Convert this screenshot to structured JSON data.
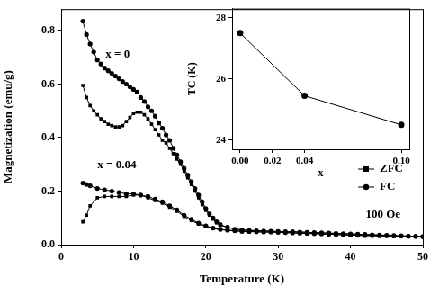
{
  "chart_data": [
    {
      "type": "line",
      "x_label": "Temperature (K)",
      "y_label": "Magnetization (emu/g)",
      "xlim": [
        0,
        50
      ],
      "xticks": [
        0,
        10,
        20,
        30,
        40,
        50
      ],
      "ylim": [
        0,
        0.88
      ],
      "yticks": [
        {
          "value": 0,
          "label": "0.0"
        },
        0.2,
        0.4,
        0.6,
        0.8
      ],
      "grid": false,
      "legend": "lower right",
      "annotations": [
        {
          "text": "x = 0",
          "x": 7.8,
          "y": 0.71
        },
        {
          "text": "x = 0.04",
          "x": 7.7,
          "y": 0.297
        },
        {
          "text": "100 Oe",
          "x": 44.5,
          "y": 0.113
        }
      ],
      "series": [
        {
          "name": "ZFC",
          "color": "#000000",
          "marker": "square",
          "line_style": "solid",
          "x": [
            3,
            3.5,
            4,
            4.5,
            5,
            5.5,
            6,
            6.5,
            7,
            7.5,
            8,
            8.5,
            9,
            9.5,
            10,
            10.5,
            11,
            11.5,
            12,
            12.5,
            13,
            13.5,
            14,
            14.5,
            15,
            15.5,
            16,
            16.5,
            17,
            17.5,
            18,
            18.5,
            19,
            19.5,
            20,
            20.5,
            21,
            21.5,
            22,
            23,
            24,
            25,
            26,
            27,
            28,
            29,
            30,
            31,
            32,
            33,
            34,
            35,
            36,
            37,
            38,
            39,
            40,
            41,
            42,
            43,
            44,
            45,
            46,
            47,
            48,
            49,
            50
          ],
          "values": [
            0.595,
            0.55,
            0.52,
            0.5,
            0.485,
            0.47,
            0.46,
            0.45,
            0.445,
            0.44,
            0.44,
            0.445,
            0.46,
            0.475,
            0.49,
            0.495,
            0.495,
            0.485,
            0.47,
            0.45,
            0.43,
            0.41,
            0.39,
            0.38,
            0.36,
            0.34,
            0.32,
            0.3,
            0.275,
            0.25,
            0.225,
            0.2,
            0.175,
            0.15,
            0.128,
            0.11,
            0.095,
            0.082,
            0.072,
            0.065,
            0.058,
            0.055,
            0.053,
            0.052,
            0.051,
            0.05,
            0.049,
            0.048,
            0.048,
            0.047,
            0.046,
            0.045,
            0.044,
            0.043,
            0.042,
            0.041,
            0.04,
            0.039,
            0.038,
            0.037,
            0.036,
            0.035,
            0.034,
            0.033,
            0.032,
            0.031,
            0.03
          ]
        },
        {
          "name": "FC",
          "color": "#000000",
          "marker": "circle",
          "line_style": "solid",
          "x": [
            3,
            3.5,
            4,
            4.5,
            5,
            5.5,
            6,
            6.5,
            7,
            7.5,
            8,
            8.5,
            9,
            9.5,
            10,
            10.5,
            11,
            11.5,
            12,
            12.5,
            13,
            13.5,
            14,
            14.5,
            15,
            15.5,
            16,
            16.5,
            17,
            17.5,
            18,
            18.5,
            19,
            19.5,
            20,
            20.5,
            21,
            21.5,
            22,
            23,
            24,
            25,
            26,
            27,
            28,
            29,
            30,
            31,
            32,
            33,
            34,
            35,
            36,
            37,
            38,
            39,
            40,
            41,
            42,
            43,
            44,
            45,
            46,
            47,
            48,
            49,
            50
          ],
          "values": [
            0.835,
            0.785,
            0.75,
            0.72,
            0.69,
            0.675,
            0.66,
            0.65,
            0.64,
            0.63,
            0.62,
            0.61,
            0.6,
            0.59,
            0.58,
            0.57,
            0.55,
            0.535,
            0.515,
            0.5,
            0.48,
            0.455,
            0.435,
            0.41,
            0.39,
            0.36,
            0.335,
            0.31,
            0.285,
            0.26,
            0.235,
            0.21,
            0.185,
            0.16,
            0.135,
            0.115,
            0.1,
            0.085,
            0.075,
            0.065,
            0.058,
            0.055,
            0.053,
            0.052,
            0.051,
            0.05,
            0.049,
            0.048,
            0.048,
            0.047,
            0.046,
            0.045,
            0.044,
            0.043,
            0.042,
            0.041,
            0.04,
            0.039,
            0.038,
            0.037,
            0.036,
            0.035,
            0.034,
            0.033,
            0.032,
            0.031,
            0.03
          ]
        },
        {
          "name": "ZFC",
          "color": "#000000",
          "marker": "square",
          "line_style": "solid",
          "x": [
            3,
            3.5,
            4,
            5,
            6,
            7,
            8,
            9,
            10,
            11,
            12,
            13,
            14,
            15,
            16,
            17,
            18,
            19,
            20,
            21,
            22,
            23,
            24,
            25,
            26,
            27,
            28,
            29,
            30,
            31,
            32,
            33,
            34,
            35,
            36,
            37,
            38,
            39,
            40,
            41,
            42,
            43,
            44,
            45,
            46,
            47,
            48,
            49,
            50
          ],
          "values": [
            0.085,
            0.11,
            0.145,
            0.175,
            0.18,
            0.18,
            0.18,
            0.18,
            0.185,
            0.185,
            0.175,
            0.165,
            0.155,
            0.14,
            0.125,
            0.105,
            0.09,
            0.077,
            0.068,
            0.06,
            0.056,
            0.053,
            0.051,
            0.049,
            0.049,
            0.048,
            0.047,
            0.047,
            0.046,
            0.045,
            0.044,
            0.043,
            0.042,
            0.041,
            0.04,
            0.039,
            0.038,
            0.037,
            0.036,
            0.035,
            0.034,
            0.034,
            0.033,
            0.033,
            0.032,
            0.032,
            0.031,
            0.031,
            0.03
          ]
        },
        {
          "name": "FC",
          "color": "#000000",
          "marker": "circle",
          "line_style": "solid",
          "x": [
            3,
            3.5,
            4,
            5,
            6,
            7,
            8,
            9,
            10,
            11,
            12,
            13,
            14,
            15,
            16,
            17,
            18,
            19,
            20,
            21,
            22,
            23,
            24,
            25,
            26,
            27,
            28,
            29,
            30,
            31,
            32,
            33,
            34,
            35,
            36,
            37,
            38,
            39,
            40,
            41,
            42,
            43,
            44,
            45,
            46,
            47,
            48,
            49,
            50
          ],
          "values": [
            0.23,
            0.225,
            0.22,
            0.21,
            0.205,
            0.2,
            0.195,
            0.19,
            0.19,
            0.185,
            0.18,
            0.17,
            0.16,
            0.145,
            0.13,
            0.11,
            0.095,
            0.08,
            0.07,
            0.062,
            0.057,
            0.054,
            0.052,
            0.05,
            0.049,
            0.048,
            0.047,
            0.047,
            0.046,
            0.045,
            0.044,
            0.043,
            0.042,
            0.041,
            0.04,
            0.039,
            0.038,
            0.037,
            0.036,
            0.035,
            0.034,
            0.034,
            0.033,
            0.033,
            0.032,
            0.032,
            0.031,
            0.031,
            0.03
          ]
        }
      ]
    },
    {
      "type": "line",
      "x_label": "x",
      "y_label": "TC (K)",
      "xlim": [
        -0.005,
        0.105
      ],
      "xticks": [
        {
          "value": 0,
          "label": "0.00"
        },
        0.02,
        0.04,
        {
          "value": 0.1,
          "label": "0.10"
        }
      ],
      "ylim": [
        23.7,
        28.3
      ],
      "yticks": [
        24,
        26,
        28
      ],
      "grid": false,
      "x": [
        0,
        0.04,
        0.1
      ],
      "values": [
        27.5,
        25.45,
        24.5
      ],
      "color": "#000000",
      "marker": "circle",
      "line_style": "solid"
    }
  ]
}
